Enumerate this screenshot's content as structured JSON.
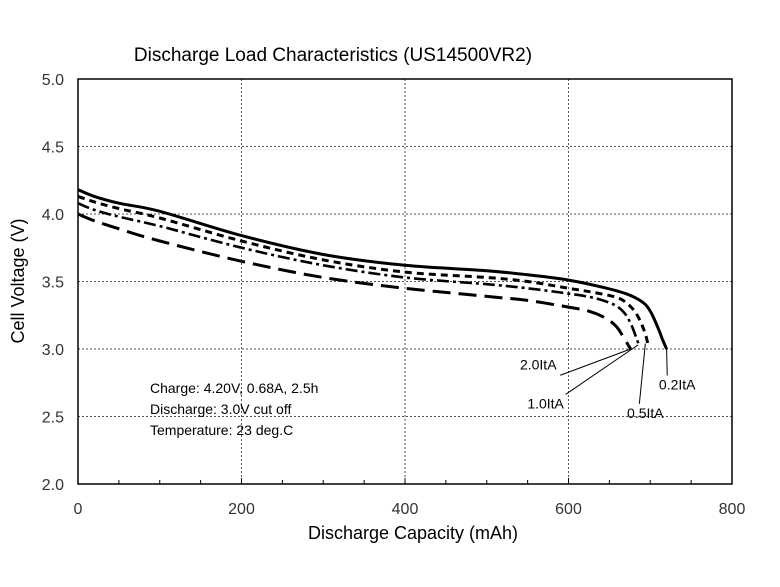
{
  "chart_data": {
    "type": "line",
    "title": "Discharge Load Characteristics (US14500VR2)",
    "xlabel": "Discharge Capacity (mAh)",
    "ylabel": "Cell Voltage (V)",
    "xlim": [
      0,
      800
    ],
    "ylim": [
      2.0,
      5.0
    ],
    "x_ticks": [
      0,
      200,
      400,
      600,
      800
    ],
    "y_ticks": [
      2.0,
      2.5,
      3.0,
      3.5,
      4.0,
      4.5,
      5.0
    ],
    "x_tick_labels": [
      "0",
      "200",
      "400",
      "600",
      "800"
    ],
    "y_tick_labels": [
      "2.0",
      "2.5",
      "3.0",
      "3.5",
      "4.0",
      "4.5",
      "5.0"
    ],
    "grid": true,
    "series": [
      {
        "name": "0.2ItA",
        "style": "solid",
        "x": [
          0,
          20,
          50,
          100,
          200,
          300,
          400,
          500,
          550,
          600,
          640,
          670,
          690,
          700,
          710,
          715,
          720
        ],
        "y": [
          4.18,
          4.13,
          4.08,
          4.02,
          3.84,
          3.7,
          3.62,
          3.58,
          3.55,
          3.51,
          3.46,
          3.41,
          3.35,
          3.28,
          3.15,
          3.07,
          3.0
        ]
      },
      {
        "name": "0.5ItA",
        "style": "dashed-short",
        "x": [
          0,
          20,
          50,
          100,
          200,
          300,
          400,
          500,
          550,
          600,
          630,
          660,
          675,
          685,
          693,
          697
        ],
        "y": [
          4.13,
          4.09,
          4.04,
          3.97,
          3.8,
          3.66,
          3.57,
          3.53,
          3.5,
          3.45,
          3.42,
          3.38,
          3.32,
          3.24,
          3.13,
          3.04
        ]
      },
      {
        "name": "1.0ItA",
        "style": "dash-dot",
        "x": [
          0,
          20,
          50,
          100,
          200,
          300,
          400,
          500,
          550,
          600,
          630,
          655,
          668,
          676,
          682,
          686
        ],
        "y": [
          4.08,
          4.03,
          3.98,
          3.91,
          3.75,
          3.62,
          3.53,
          3.48,
          3.45,
          3.41,
          3.38,
          3.33,
          3.27,
          3.19,
          3.1,
          3.03
        ]
      },
      {
        "name": "2.0ItA",
        "style": "dashed-long",
        "x": [
          0,
          20,
          50,
          100,
          200,
          300,
          400,
          500,
          550,
          600,
          625,
          645,
          658,
          666,
          672,
          676
        ],
        "y": [
          4.0,
          3.95,
          3.89,
          3.8,
          3.65,
          3.53,
          3.45,
          3.39,
          3.36,
          3.31,
          3.28,
          3.23,
          3.17,
          3.1,
          3.04,
          3.0
        ]
      }
    ],
    "series_labels": [
      {
        "series": "2.0ItA",
        "text": "2.0ItA",
        "x": 563,
        "y": 2.85,
        "anchor_x": 676,
        "anchor_y": 3.0
      },
      {
        "series": "1.0ItA",
        "text": "1.0ItA",
        "x": 572,
        "y": 2.56,
        "anchor_x": 685,
        "anchor_y": 3.03
      },
      {
        "series": "0.5ItA",
        "text": "0.5ItA",
        "x": 694,
        "y": 2.49,
        "anchor_x": 694,
        "anchor_y": 3.04
      },
      {
        "series": "0.2ItA",
        "text": "0.2ItA",
        "x": 733,
        "y": 2.7,
        "anchor_x": 720,
        "anchor_y": 3.0
      }
    ],
    "annotations": [
      "Charge: 4.20V, 0.68A, 2.5h",
      "Discharge: 3.0V cut off",
      "Temperature: 23 deg.C"
    ]
  }
}
